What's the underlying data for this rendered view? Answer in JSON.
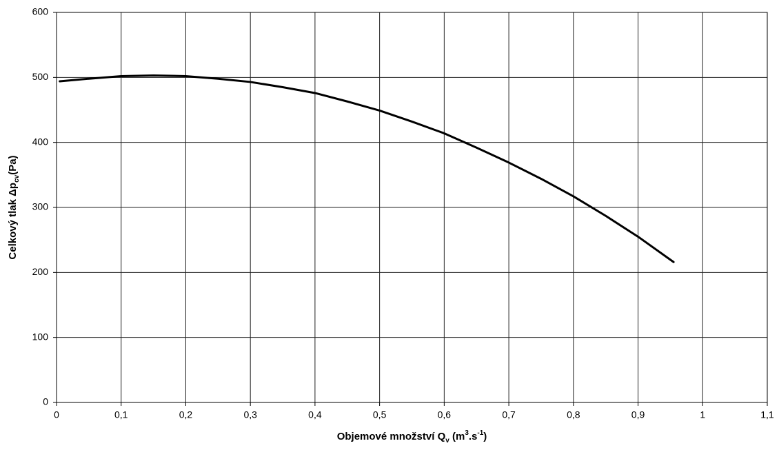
{
  "chart_data": {
    "type": "line",
    "x": [
      0.005,
      0.05,
      0.1,
      0.15,
      0.2,
      0.25,
      0.3,
      0.35,
      0.4,
      0.45,
      0.5,
      0.55,
      0.6,
      0.65,
      0.7,
      0.75,
      0.8,
      0.85,
      0.9,
      0.955
    ],
    "series": [
      {
        "color": "#000000",
        "values": [
          494,
          498,
          502,
          503,
          502,
          498,
          493,
          485,
          476,
          463,
          449,
          432,
          414,
          392,
          369,
          344,
          317,
          287,
          255,
          216
        ]
      }
    ],
    "xlim": [
      0,
      1.1
    ],
    "xticks": [
      0,
      {
        "value": 0.1,
        "label": "0,1"
      },
      {
        "value": 0.2,
        "label": "0,2"
      },
      {
        "value": 0.3,
        "label": "0,3"
      },
      {
        "value": 0.4,
        "label": "0,4"
      },
      {
        "value": 0.5,
        "label": "0,5"
      },
      {
        "value": 0.6,
        "label": "0,6"
      },
      {
        "value": 0.7,
        "label": "0,7"
      },
      {
        "value": 0.8,
        "label": "0,8"
      },
      {
        "value": 0.9,
        "label": "0,9"
      },
      1,
      {
        "value": 1.1,
        "label": "1,1"
      }
    ],
    "ylim": [
      0,
      600
    ],
    "yticks": [
      0,
      100,
      200,
      300,
      400,
      500,
      600
    ],
    "grid": true,
    "xlabel": [
      {
        "text": "Objemové množství Q"
      },
      {
        "text": "v",
        "sub": true
      },
      {
        "text": " (m"
      },
      {
        "text": "3",
        "sup": true
      },
      {
        "text": ".s"
      },
      {
        "text": "-1",
        "sup": true
      },
      {
        "text": ")"
      }
    ],
    "ylabel": [
      {
        "text": "Celkový tlak Δp"
      },
      {
        "text": "cv",
        "sub": true
      },
      {
        "text": "(Pa)"
      }
    ]
  }
}
